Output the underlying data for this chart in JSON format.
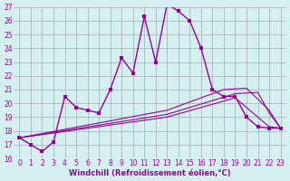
{
  "xlabel": "Windchill (Refroidissement éolien,°C)",
  "bg_color": "#d4f0f0",
  "line_color": "#990099",
  "grid_color": "#aaaaaa",
  "xlim": [
    -0.5,
    23.5
  ],
  "ylim": [
    16,
    27
  ],
  "xticks": [
    0,
    1,
    2,
    3,
    4,
    5,
    6,
    7,
    8,
    9,
    10,
    11,
    12,
    13,
    14,
    15,
    16,
    17,
    18,
    19,
    20,
    21,
    22,
    23
  ],
  "yticks": [
    16,
    17,
    18,
    19,
    20,
    21,
    22,
    23,
    24,
    25,
    26,
    27
  ],
  "main_series": {
    "x": [
      0,
      1,
      2,
      3,
      4,
      5,
      6,
      7,
      8,
      9,
      10,
      11,
      12,
      13,
      14,
      15,
      16,
      17,
      18,
      19,
      20,
      21,
      22,
      23
    ],
    "y": [
      17.5,
      17.0,
      16.5,
      17.2,
      20.5,
      19.7,
      19.5,
      19.3,
      21.0,
      23.3,
      22.2,
      26.3,
      23.0,
      27.2,
      26.7,
      26.0,
      24.0,
      21.0,
      20.5,
      20.5,
      19.0,
      18.3,
      18.2,
      18.2
    ]
  },
  "fan_series": [
    {
      "x": [
        0,
        13,
        19,
        22,
        23
      ],
      "y": [
        17.5,
        19.0,
        20.4,
        18.3,
        18.2
      ]
    },
    {
      "x": [
        0,
        13,
        19,
        21,
        22,
        23
      ],
      "y": [
        17.5,
        19.2,
        20.7,
        20.8,
        19.3,
        18.2
      ]
    },
    {
      "x": [
        0,
        13,
        18,
        20,
        22,
        23
      ],
      "y": [
        17.5,
        19.5,
        21.0,
        21.1,
        19.5,
        18.2
      ]
    }
  ]
}
